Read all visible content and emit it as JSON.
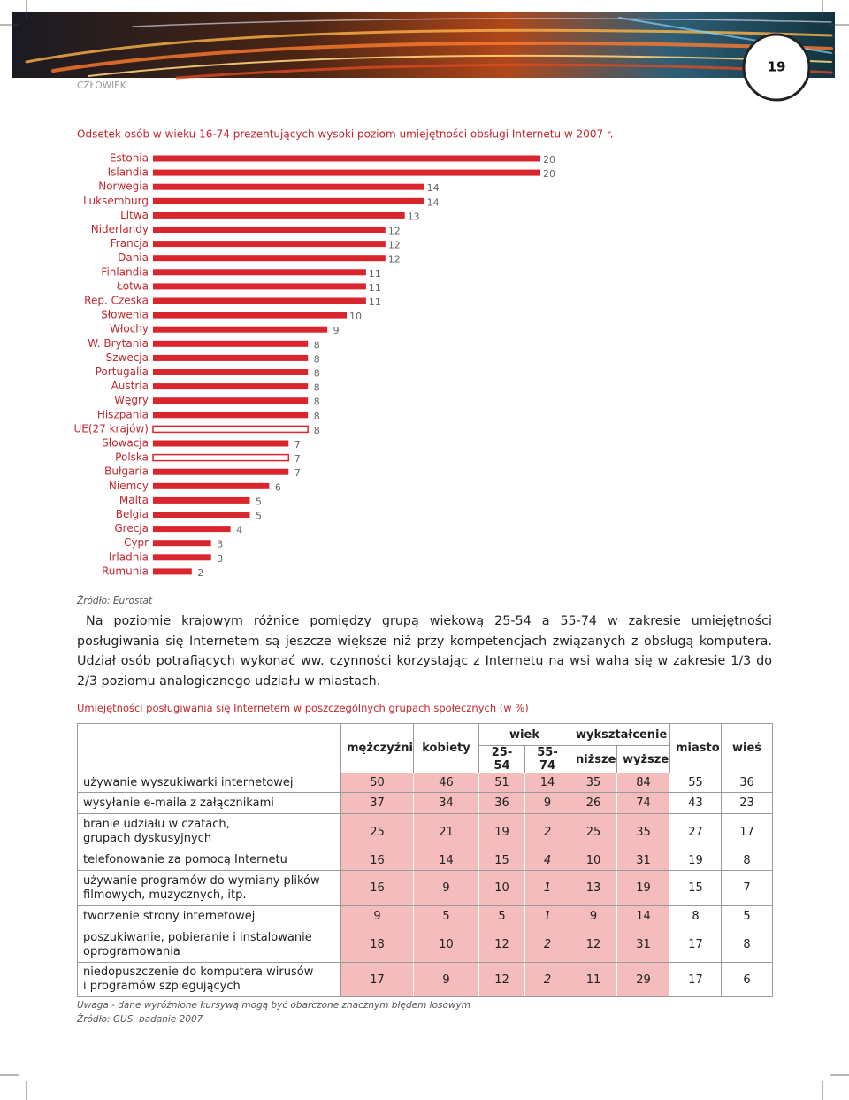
{
  "header": {
    "section": "CZŁOWIEK",
    "page_number": "19"
  },
  "chart_data": {
    "type": "bar",
    "orientation": "horizontal",
    "title": "Odsetek osób w wieku 16-74 prezentujących wysoki poziom umiejętności obsługi Internetu w 2007 r.",
    "categories": [
      "Estonia",
      "Islandia",
      "Norwegia",
      "Luksemburg",
      "Litwa",
      "Niderlandy",
      "Francja",
      "Dania",
      "Finlandia",
      "Łotwa",
      "Rep. Czeska",
      "Słowenia",
      "Włochy",
      "W. Brytania",
      "Szwecja",
      "Portugalia",
      "Austria",
      "Węgry",
      "Hiszpania",
      "UE(27 krajów)",
      "Słowacja",
      "Polska",
      "Bułgaria",
      "Niemcy",
      "Malta",
      "Belgia",
      "Grecja",
      "Cypr",
      "Irladnia",
      "Rumunia"
    ],
    "values": [
      20,
      20,
      14,
      14,
      13,
      12,
      12,
      12,
      11,
      11,
      11,
      10,
      9,
      8,
      8,
      8,
      8,
      8,
      8,
      8,
      7,
      7,
      7,
      6,
      5,
      5,
      4,
      3,
      3,
      2
    ],
    "color": "#d9262e",
    "fills": [
      "#d9262e",
      "#d9262e",
      "#d9262e",
      "#d9262e",
      "#d9262e",
      "#d9262e",
      "#d9262e",
      "#d9262e",
      "#d9262e",
      "#d9262e",
      "#d9262e",
      "#d9262e",
      "#d9262e",
      "#d9262e",
      "#d9262e",
      "#d9262e",
      "#d9262e",
      "#d9262e",
      "#d9262e",
      "#ffffff",
      "#d9262e",
      "#ffffff",
      "#d9262e",
      "#d9262e",
      "#d9262e",
      "#d9262e",
      "#d9262e",
      "#d9262e",
      "#d9262e",
      "#d9262e"
    ],
    "xlim": [
      0,
      20
    ],
    "source": "Źródło: Eurostat"
  },
  "paragraph": "Na poziomie krajowym różnice pomiędzy grupą wiekową 25-54 a 55-74 w zakresie umiejętności posługiwania się Internetem są jeszcze większe niż przy kompetencjach związanych z obsługą komputera. Udział osób potrafiących wykonać ww. czynności korzystając z Internetu na wsi waha się w zakresie 1/3 do 2/3 poziomu analogicznego udziału w miastach.",
  "table": {
    "title": "Umiejętności posługiwania się Internetem w poszczególnych grupach społecznych (w %)",
    "groups": [
      {
        "label": "mężczyźni"
      },
      {
        "label": "kobiety"
      },
      {
        "label": "wiek",
        "sub": [
          "25-54",
          "55-74"
        ]
      },
      {
        "label": "wykształcenie",
        "sub": [
          "niższe",
          "wyższe"
        ]
      },
      {
        "label": "miasto"
      },
      {
        "label": "wieś"
      }
    ],
    "rows": [
      {
        "label": "używanie wyszukiwarki internetowej",
        "cells": [
          50,
          46,
          51,
          14,
          35,
          84,
          55,
          36
        ]
      },
      {
        "label": "wysyłanie e-maila z załącznikami",
        "cells": [
          37,
          34,
          36,
          9,
          26,
          74,
          43,
          23
        ]
      },
      {
        "label": "branie udziału w czatach,\ngrupach dyskusyjnych",
        "cells": [
          25,
          21,
          19,
          {
            "value": 2,
            "italic": true
          },
          25,
          35,
          27,
          17
        ]
      },
      {
        "label": "telefonowanie za pomocą Internetu",
        "cells": [
          16,
          14,
          15,
          {
            "value": 4,
            "italic": true
          },
          10,
          31,
          19,
          8
        ]
      },
      {
        "label": "używanie programów do wymiany plików\nfilmowych, muzycznych, itp.",
        "cells": [
          16,
          9,
          10,
          {
            "value": 1,
            "italic": true
          },
          13,
          19,
          15,
          7
        ]
      },
      {
        "label": "tworzenie strony internetowej",
        "cells": [
          9,
          5,
          5,
          {
            "value": 1,
            "italic": true
          },
          9,
          14,
          8,
          5
        ]
      },
      {
        "label": "poszukiwanie, pobieranie i instalowanie\noprogramowania",
        "cells": [
          18,
          10,
          12,
          {
            "value": 2,
            "italic": true
          },
          12,
          31,
          17,
          8
        ]
      },
      {
        "label": "niedopuszczenie do komputera wirusów\ni programów szpiegujących",
        "cells": [
          17,
          9,
          12,
          {
            "value": 2,
            "italic": true
          },
          11,
          29,
          17,
          6
        ]
      }
    ]
  },
  "notes": [
    "Uwaga - dane wyróżnione kursywą mogą być obarczone znacznym błędem losowym",
    "Źródło: GUS, badanie 2007"
  ]
}
